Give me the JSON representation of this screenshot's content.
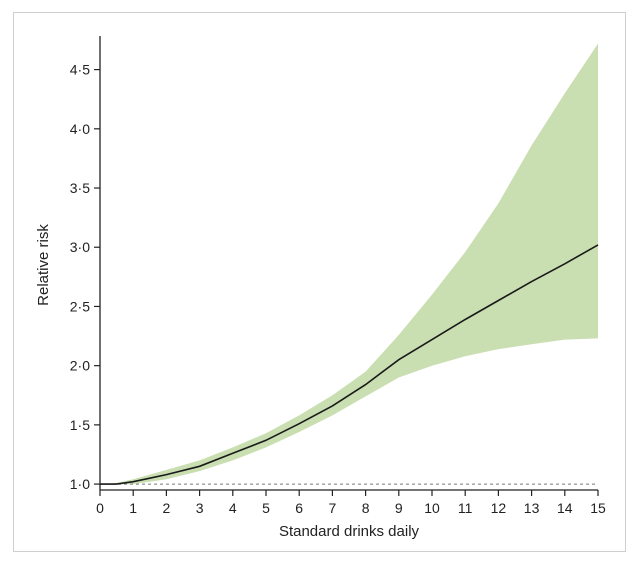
{
  "chart_data": {
    "type": "area",
    "xlabel": "Standard drinks daily",
    "ylabel": "Relative risk",
    "xlim": [
      0,
      15
    ],
    "ylim": [
      0.95,
      4.75
    ],
    "x_ticks": [
      0,
      1,
      2,
      3,
      4,
      5,
      6,
      7,
      8,
      9,
      10,
      11,
      12,
      13,
      14,
      15
    ],
    "x_tick_labels": [
      "0",
      "1",
      "2",
      "3",
      "4",
      "5",
      "6",
      "7",
      "8",
      "9",
      "10",
      "11",
      "12",
      "13",
      "14",
      "15"
    ],
    "y_ticks": [
      1.0,
      1.5,
      2.0,
      2.5,
      3.0,
      3.5,
      4.0,
      4.5
    ],
    "y_tick_labels": [
      "1·0",
      "1·5",
      "2·0",
      "2·5",
      "3·0",
      "3·5",
      "4·0",
      "4·5"
    ],
    "reference_line": {
      "y": 1.0,
      "style": "dashed"
    },
    "series": [
      {
        "x": [
          0,
          0.5,
          1,
          1.5,
          2,
          3,
          4,
          5,
          6,
          7,
          8,
          9,
          10,
          11,
          12,
          13,
          14,
          15
        ],
        "y": [
          1.0,
          1.0,
          1.02,
          1.05,
          1.08,
          1.15,
          1.26,
          1.37,
          1.51,
          1.66,
          1.84,
          2.05,
          2.22,
          2.39,
          2.55,
          2.71,
          2.86,
          3.02
        ],
        "color": "#1a1a1a"
      }
    ],
    "confidence_band": {
      "x": [
        0,
        0.5,
        1,
        1.5,
        2,
        3,
        4,
        5,
        6,
        7,
        8,
        9,
        10,
        11,
        12,
        13,
        14,
        15
      ],
      "lower": [
        1.0,
        1.0,
        1.0,
        1.02,
        1.04,
        1.11,
        1.2,
        1.31,
        1.44,
        1.58,
        1.74,
        1.9,
        2.0,
        2.08,
        2.14,
        2.18,
        2.22,
        2.23
      ],
      "upper": [
        1.0,
        1.01,
        1.04,
        1.08,
        1.12,
        1.2,
        1.31,
        1.43,
        1.58,
        1.75,
        1.95,
        2.26,
        2.6,
        2.96,
        3.37,
        3.86,
        4.3,
        4.72
      ],
      "color": "#c9dfb1"
    },
    "grid": false,
    "legend": "none"
  }
}
